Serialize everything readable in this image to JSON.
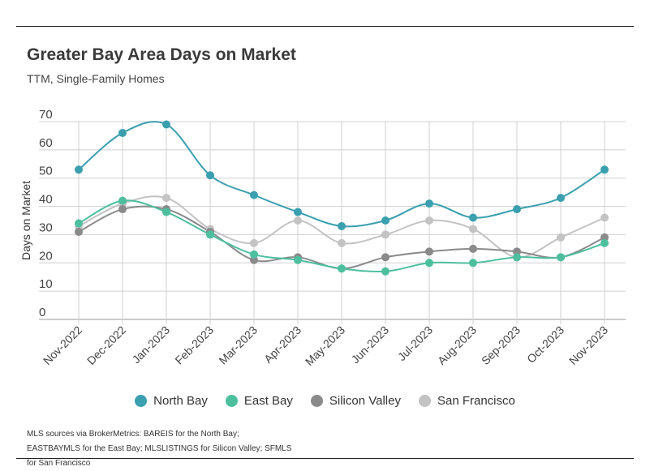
{
  "header": {
    "title": "Greater Bay Area Days on Market",
    "subtitle": "TTM, Single-Family Homes"
  },
  "footnote": "MLS sources via BrokerMetrics: BAREIS for the North Bay; EASTBAYMLS for the East Bay; MLSLISTINGS for Silicon Valley; SFMLS for San Francisco",
  "chart_data": {
    "type": "line",
    "title": "Greater Bay Area Days on Market",
    "subtitle": "TTM, Single-Family Homes",
    "xlabel": "",
    "ylabel": "Days on Market",
    "ylim": [
      0,
      70
    ],
    "yticks": [
      0,
      10,
      20,
      30,
      40,
      50,
      60,
      70
    ],
    "grid": true,
    "legend": "bottom",
    "categories": [
      "Nov-2022",
      "Dec-2022",
      "Jan-2023",
      "Feb-2023",
      "Mar-2023",
      "Apr-2023",
      "May-2023",
      "Jun-2023",
      "Jul-2023",
      "Aug-2023",
      "Sep-2023",
      "Oct-2023",
      "Nov-2023"
    ],
    "series": [
      {
        "name": "North Bay",
        "color": "#3a9fae",
        "values": [
          53,
          66,
          69,
          51,
          44,
          38,
          33,
          35,
          41,
          36,
          39,
          43,
          53
        ]
      },
      {
        "name": "East Bay",
        "color": "#4dbf9f",
        "values": [
          34,
          42,
          38,
          30,
          23,
          21,
          18,
          17,
          20,
          20,
          22,
          22,
          27
        ]
      },
      {
        "name": "Silicon Valley",
        "color": "#8a8a8a",
        "values": [
          31,
          39,
          39,
          31,
          21,
          22,
          18,
          22,
          24,
          25,
          24,
          22,
          29
        ]
      },
      {
        "name": "San Francisco",
        "color": "#c3c3c3",
        "values": [
          33,
          41,
          43,
          32,
          27,
          35,
          27,
          30,
          35,
          32,
          22,
          29,
          36
        ]
      }
    ]
  }
}
